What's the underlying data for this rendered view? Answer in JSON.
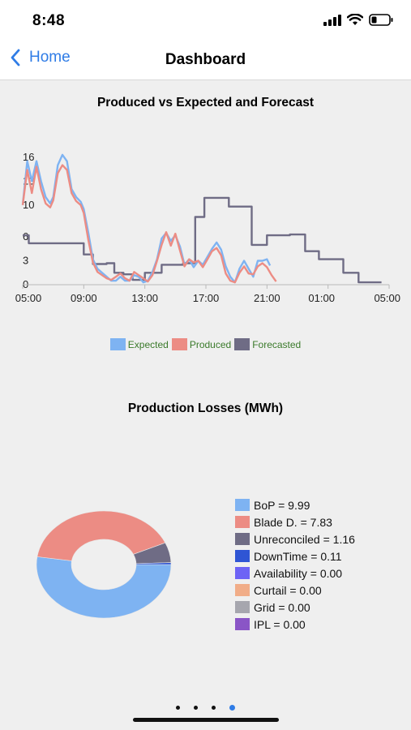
{
  "status": {
    "time": "8:48"
  },
  "nav": {
    "back_label": "Home",
    "title": "Dashboard"
  },
  "colors": {
    "expected": "#7eb3f2",
    "produced": "#ec8c84",
    "forecasted": "#6f6c85",
    "accent": "#2f7ce6"
  },
  "chart_data": [
    {
      "type": "line",
      "title": "Produced vs Expected and Forecast",
      "x_tick_labels": [
        "05:00",
        "09:00",
        "13:00",
        "17:00",
        "21:00",
        "01:00",
        "05:00"
      ],
      "y_tick_labels": [
        "0",
        "3",
        "6",
        "10",
        "13",
        "16"
      ],
      "ylim": [
        0,
        17
      ],
      "x_range_hours": [
        5,
        29
      ],
      "legend": [
        "Expected",
        "Produced",
        "Forecasted"
      ],
      "legend_position": "bottom-center",
      "grid": false,
      "series": [
        {
          "name": "Expected",
          "color": "#7eb3f2",
          "points": [
            [
              5,
              10
            ],
            [
              5.3,
              15.5
            ],
            [
              5.6,
              13
            ],
            [
              5.9,
              15.5
            ],
            [
              6.2,
              13
            ],
            [
              6.5,
              11
            ],
            [
              6.8,
              10.2
            ],
            [
              7,
              11
            ],
            [
              7.3,
              15
            ],
            [
              7.6,
              16.3
            ],
            [
              7.9,
              15.5
            ],
            [
              8.2,
              12
            ],
            [
              8.5,
              11
            ],
            [
              8.8,
              10.4
            ],
            [
              9,
              9.5
            ],
            [
              9.3,
              6.5
            ],
            [
              9.6,
              3.2
            ],
            [
              9.9,
              2
            ],
            [
              10.2,
              1.5
            ],
            [
              10.5,
              1
            ],
            [
              10.8,
              0.5
            ],
            [
              11.1,
              0.5
            ],
            [
              11.4,
              1
            ],
            [
              11.7,
              0.5
            ],
            [
              12,
              0.5
            ],
            [
              12.3,
              1.2
            ],
            [
              12.6,
              1
            ],
            [
              12.9,
              0.3
            ],
            [
              13.2,
              0.5
            ],
            [
              13.5,
              1.6
            ],
            [
              13.8,
              3.2
            ],
            [
              14.1,
              5.8
            ],
            [
              14.4,
              6.5
            ],
            [
              14.7,
              5.5
            ],
            [
              15,
              6.2
            ],
            [
              15.3,
              4.8
            ],
            [
              15.6,
              2.5
            ],
            [
              15.9,
              3.2
            ],
            [
              16.2,
              2.2
            ],
            [
              16.5,
              3
            ],
            [
              16.8,
              2.5
            ],
            [
              17.1,
              3.5
            ],
            [
              17.4,
              4.5
            ],
            [
              17.7,
              5.3
            ],
            [
              18,
              4.4
            ],
            [
              18.3,
              2.3
            ],
            [
              18.6,
              1
            ],
            [
              18.9,
              0.3
            ],
            [
              19.2,
              2
            ],
            [
              19.5,
              3
            ],
            [
              19.8,
              2
            ],
            [
              20.1,
              1
            ],
            [
              20.4,
              3
            ],
            [
              20.7,
              3
            ],
            [
              21,
              3.2
            ],
            [
              21.2,
              2.4
            ]
          ]
        },
        {
          "name": "Produced",
          "color": "#ec8c84",
          "points": [
            [
              5,
              10
            ],
            [
              5.3,
              14.4
            ],
            [
              5.6,
              11.5
            ],
            [
              5.9,
              14.8
            ],
            [
              6.2,
              12
            ],
            [
              6.5,
              10.2
            ],
            [
              6.8,
              9.7
            ],
            [
              7,
              10.6
            ],
            [
              7.3,
              14
            ],
            [
              7.6,
              15
            ],
            [
              7.9,
              14.4
            ],
            [
              8.2,
              11.5
            ],
            [
              8.5,
              10.5
            ],
            [
              8.8,
              10
            ],
            [
              9,
              9
            ],
            [
              9.3,
              5.6
            ],
            [
              9.6,
              2.8
            ],
            [
              9.9,
              1.6
            ],
            [
              10.2,
              1.2
            ],
            [
              10.5,
              0.8
            ],
            [
              10.8,
              0.6
            ],
            [
              11.1,
              1
            ],
            [
              11.4,
              1.4
            ],
            [
              11.7,
              0.8
            ],
            [
              12,
              0.5
            ],
            [
              12.3,
              1.6
            ],
            [
              12.6,
              1.2
            ],
            [
              12.9,
              0.8
            ],
            [
              13.2,
              0.4
            ],
            [
              13.5,
              1.2
            ],
            [
              13.8,
              3
            ],
            [
              14.1,
              5
            ],
            [
              14.4,
              6.6
            ],
            [
              14.7,
              4.9
            ],
            [
              15,
              6.4
            ],
            [
              15.3,
              4.3
            ],
            [
              15.6,
              2.3
            ],
            [
              15.9,
              3.2
            ],
            [
              16.2,
              2.8
            ],
            [
              16.5,
              3
            ],
            [
              16.8,
              2.2
            ],
            [
              17.1,
              3.2
            ],
            [
              17.4,
              4.2
            ],
            [
              17.7,
              4.6
            ],
            [
              18,
              3.7
            ],
            [
              18.3,
              1.4
            ],
            [
              18.6,
              0.5
            ],
            [
              18.9,
              0.3
            ],
            [
              19.2,
              1.5
            ],
            [
              19.5,
              2.3
            ],
            [
              19.8,
              1.4
            ],
            [
              20.1,
              1.3
            ],
            [
              20.4,
              2.3
            ],
            [
              20.7,
              2.7
            ],
            [
              21,
              2.2
            ],
            [
              21.3,
              1.2
            ],
            [
              21.6,
              0.4
            ]
          ]
        },
        {
          "name": "Forecasted",
          "color": "#6f6c85",
          "points": [
            [
              5,
              6.2
            ],
            [
              5.4,
              6.2
            ],
            [
              5.4,
              5.2
            ],
            [
              9,
              5.2
            ],
            [
              9,
              3.8
            ],
            [
              9.6,
              3.8
            ],
            [
              9.6,
              2.6
            ],
            [
              10.5,
              2.6
            ],
            [
              10.5,
              2.7
            ],
            [
              11,
              2.7
            ],
            [
              11,
              1.5
            ],
            [
              11.6,
              1.5
            ],
            [
              11.6,
              1.3
            ],
            [
              12.2,
              1.3
            ],
            [
              12.2,
              0.6
            ],
            [
              13,
              0.6
            ],
            [
              13,
              1.5
            ],
            [
              14.1,
              1.5
            ],
            [
              14.1,
              2.5
            ],
            [
              15.5,
              2.5
            ],
            [
              15.5,
              2.7
            ],
            [
              16.3,
              2.7
            ],
            [
              16.3,
              8.5
            ],
            [
              16.9,
              8.5
            ],
            [
              16.9,
              10.9
            ],
            [
              18.5,
              10.9
            ],
            [
              18.5,
              9.8
            ],
            [
              20,
              9.8
            ],
            [
              20,
              5
            ],
            [
              21,
              5
            ],
            [
              21,
              6.2
            ],
            [
              22.5,
              6.2
            ],
            [
              22.5,
              6.3
            ],
            [
              23.5,
              6.3
            ],
            [
              23.5,
              4.2
            ],
            [
              24.4,
              4.2
            ],
            [
              24.4,
              3.2
            ],
            [
              26,
              3.2
            ],
            [
              26,
              1.5
            ],
            [
              27,
              1.5
            ],
            [
              27,
              0.3
            ],
            [
              28.5,
              0.3
            ]
          ]
        }
      ]
    },
    {
      "type": "pie",
      "title": "Production Losses (MWh)",
      "donut": true,
      "legend_position": "right",
      "slices": [
        {
          "label": "BoP = 9.99",
          "value": 9.99,
          "color": "#7eb3f2"
        },
        {
          "label": "Blade D. = 7.83",
          "value": 7.83,
          "color": "#ec8c84"
        },
        {
          "label": "Unreconciled = 1.16",
          "value": 1.16,
          "color": "#6f6c85"
        },
        {
          "label": "DownTime = 0.11",
          "value": 0.11,
          "color": "#2f55d4"
        },
        {
          "label": "Availability = 0.00",
          "value": 0.0,
          "color": "#6d63f5"
        },
        {
          "label": "Curtail = 0.00",
          "value": 0.0,
          "color": "#f1ad88"
        },
        {
          "label": "Grid = 0.00",
          "value": 0.0,
          "color": "#a6a6ae"
        },
        {
          "label": "IPL = 0.00",
          "value": 0.0,
          "color": "#8a55c6"
        }
      ]
    }
  ],
  "pager": {
    "count": 4,
    "active_index": 3
  }
}
